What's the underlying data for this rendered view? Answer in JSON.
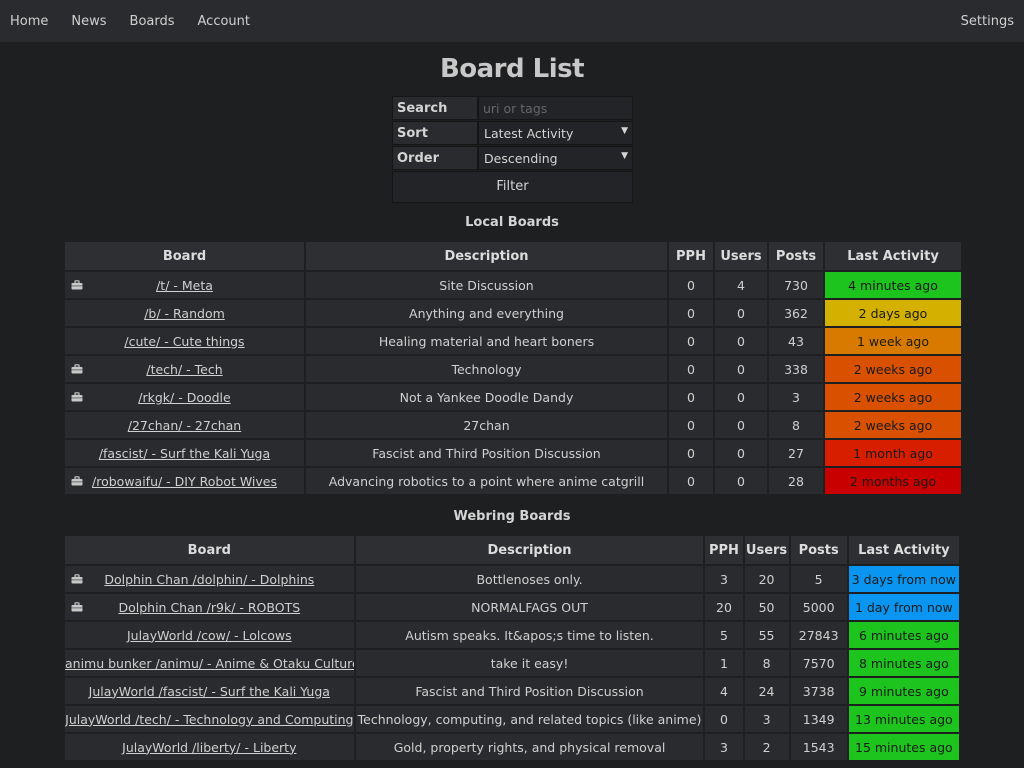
{
  "nav": {
    "items": [
      "Home",
      "News",
      "Boards",
      "Account"
    ],
    "settings": "Settings"
  },
  "title": "Board List",
  "form": {
    "search_label": "Search",
    "search_placeholder": "uri or tags",
    "sort_label": "Sort",
    "sort_value": "Latest Activity",
    "order_label": "Order",
    "order_value": "Descending",
    "filter_button": "Filter"
  },
  "local": {
    "title": "Local Boards",
    "headers": [
      "Board",
      "Description",
      "PPH",
      "Users",
      "Posts",
      "Last Activity"
    ],
    "rows": [
      {
        "icon": true,
        "board": "/t/ - Meta",
        "desc": "Site Discussion",
        "pph": "0",
        "users": "4",
        "posts": "730",
        "activity": "4 minutes ago",
        "color": "#1ec41e"
      },
      {
        "icon": false,
        "board": "/b/ - Random",
        "desc": "Anything and everything",
        "pph": "0",
        "users": "0",
        "posts": "362",
        "activity": "2 days ago",
        "color": "#d4b000"
      },
      {
        "icon": false,
        "board": "/cute/ - Cute things",
        "desc": "Healing material and heart boners",
        "pph": "0",
        "users": "0",
        "posts": "43",
        "activity": "1 week ago",
        "color": "#d87a00"
      },
      {
        "icon": true,
        "board": "/tech/ - Tech",
        "desc": "Technology",
        "pph": "0",
        "users": "0",
        "posts": "338",
        "activity": "2 weeks ago",
        "color": "#d85000"
      },
      {
        "icon": true,
        "board": "/rkgk/ - Doodle",
        "desc": "Not a Yankee Doodle Dandy",
        "pph": "0",
        "users": "0",
        "posts": "3",
        "activity": "2 weeks ago",
        "color": "#d85000"
      },
      {
        "icon": false,
        "board": "/27chan/ - 27chan",
        "desc": "27chan",
        "pph": "0",
        "users": "0",
        "posts": "8",
        "activity": "2 weeks ago",
        "color": "#d85000"
      },
      {
        "icon": false,
        "board": "/fascist/ - Surf the Kali Yuga",
        "desc": "Fascist and Third Position Discussion",
        "pph": "0",
        "users": "0",
        "posts": "27",
        "activity": "1 month ago",
        "color": "#d81e00"
      },
      {
        "icon": true,
        "board": "/robowaifu/ - DIY Robot Wives",
        "desc": "Advancing robotics to a point where anime catgrill",
        "pph": "0",
        "users": "0",
        "posts": "28",
        "activity": "2 months ago",
        "color": "#c80000"
      }
    ]
  },
  "webring": {
    "title": "Webring Boards",
    "headers": [
      "Board",
      "Description",
      "PPH",
      "Users",
      "Posts",
      "Last Activity"
    ],
    "rows": [
      {
        "icon": true,
        "board": "Dolphin Chan /dolphin/ - Dolphins",
        "desc": "Bottlenoses only.",
        "pph": "3",
        "users": "20",
        "posts": "5",
        "activity": "3 days from now",
        "color": "#0a96f0"
      },
      {
        "icon": true,
        "board": "Dolphin Chan /r9k/ - ROBOTS",
        "desc": "NORMALFAGS OUT",
        "pph": "20",
        "users": "50",
        "posts": "5000",
        "activity": "1 day from now",
        "color": "#0a96f0"
      },
      {
        "icon": false,
        "board": "JulayWorld /cow/ - Lolcows",
        "desc": "Autism speaks. It&apos;s time to listen.",
        "pph": "5",
        "users": "55",
        "posts": "27843",
        "activity": "6 minutes ago",
        "color": "#1ec41e"
      },
      {
        "icon": false,
        "board": "animu bunker /animu/ - Anime & Otaku Culture",
        "desc": "take it easy!",
        "pph": "1",
        "users": "8",
        "posts": "7570",
        "activity": "8 minutes ago",
        "color": "#1ec41e"
      },
      {
        "icon": false,
        "board": "JulayWorld /fascist/ - Surf the Kali Yuga",
        "desc": "Fascist and Third Position Discussion",
        "pph": "4",
        "users": "24",
        "posts": "3738",
        "activity": "9 minutes ago",
        "color": "#1ec41e"
      },
      {
        "icon": false,
        "board": "JulayWorld /tech/ - Technology and Computing",
        "desc": "Technology, computing, and related topics (like anime)",
        "pph": "0",
        "users": "3",
        "posts": "1349",
        "activity": "13 minutes ago",
        "color": "#1ec41e"
      },
      {
        "icon": false,
        "board": "JulayWorld /liberty/ - Liberty",
        "desc": "Gold, property rights, and physical removal",
        "pph": "3",
        "users": "2",
        "posts": "1543",
        "activity": "15 minutes ago",
        "color": "#1ec41e"
      }
    ]
  }
}
